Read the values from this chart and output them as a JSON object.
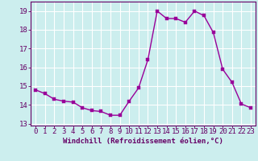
{
  "x": [
    0,
    1,
    2,
    3,
    4,
    5,
    6,
    7,
    8,
    9,
    10,
    11,
    12,
    13,
    14,
    15,
    16,
    17,
    18,
    19,
    20,
    21,
    22,
    23
  ],
  "y": [
    14.8,
    14.6,
    14.3,
    14.2,
    14.15,
    13.85,
    13.7,
    13.65,
    13.45,
    13.45,
    14.2,
    14.9,
    16.4,
    19.0,
    18.6,
    18.6,
    18.4,
    19.0,
    18.75,
    17.85,
    15.9,
    15.2,
    14.05,
    13.85
  ],
  "line_color": "#990099",
  "marker": "s",
  "marker_size": 2.2,
  "line_width": 1.0,
  "xlabel": "Windchill (Refroidissement éolien,°C)",
  "xlabel_color": "#660066",
  "xlabel_fontsize": 6.5,
  "xtick_labels": [
    "0",
    "1",
    "2",
    "3",
    "4",
    "5",
    "6",
    "7",
    "8",
    "9",
    "10",
    "11",
    "12",
    "13",
    "14",
    "15",
    "16",
    "17",
    "18",
    "19",
    "20",
    "21",
    "22",
    "23"
  ],
  "ytick_labels": [
    "13",
    "14",
    "15",
    "16",
    "17",
    "18",
    "19"
  ],
  "ylim": [
    12.9,
    19.5
  ],
  "xlim": [
    -0.5,
    23.5
  ],
  "background_color": "#cceeee",
  "grid_color": "#aadddd",
  "tick_color": "#660066",
  "tick_fontsize": 6.5,
  "border_color": "#660066"
}
